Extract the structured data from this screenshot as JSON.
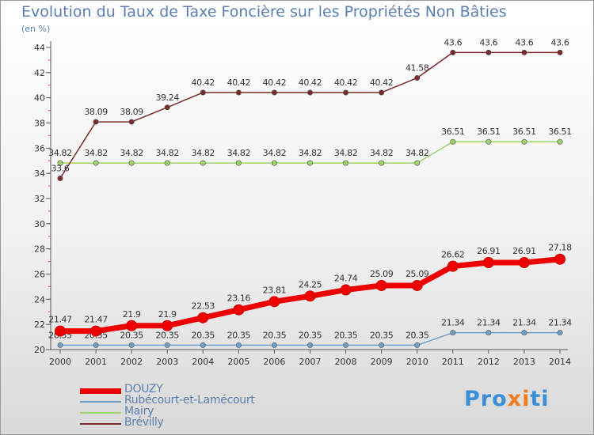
{
  "title": "Evolution du Taux de Taxe Foncière sur les Propriétés Non Bâties",
  "unit_label": "(en %)",
  "brand": {
    "parts": [
      "Pro",
      "x",
      "i",
      "ti"
    ],
    "colors": [
      "#3a8fd6",
      "#ee7b1e",
      "#ee7b1e",
      "#3a8fd6"
    ]
  },
  "chart_data": {
    "type": "line",
    "x": [
      "2000",
      "2001",
      "2002",
      "2003",
      "2004",
      "2005",
      "2006",
      "2007",
      "2008",
      "2009",
      "2010",
      "2011",
      "2012",
      "2013",
      "2014"
    ],
    "ylim": [
      20,
      44
    ],
    "yticks": [
      20,
      22,
      24,
      26,
      28,
      30,
      32,
      34,
      36,
      38,
      40,
      42,
      44
    ],
    "grid": false,
    "legend_position": "bottom-left",
    "series": [
      {
        "name": "DOUZY",
        "color": "#ee0000",
        "emphasis": true,
        "values": [
          21.47,
          21.47,
          21.9,
          21.9,
          22.53,
          23.16,
          23.81,
          24.25,
          24.74,
          25.09,
          25.09,
          26.62,
          26.91,
          26.91,
          27.18
        ],
        "labels": [
          "21.47",
          "21.47",
          "21.9",
          "21.9",
          "22.53",
          "23.16",
          "23.81",
          "24.25",
          "24.74",
          "25.09",
          "25.09",
          "26.62",
          "26.91",
          "26.91",
          "27.18"
        ]
      },
      {
        "name": "Rubécourt-et-Lamécourt",
        "color": "#6f9fc8",
        "values": [
          20.35,
          20.35,
          20.35,
          20.35,
          20.35,
          20.35,
          20.35,
          20.35,
          20.35,
          20.35,
          20.35,
          21.34,
          21.34,
          21.34,
          21.34
        ],
        "labels": [
          "20.35",
          "20.35",
          "20.35",
          "20.35",
          "20.35",
          "20.35",
          "20.35",
          "20.35",
          "20.35",
          "20.35",
          "20.35",
          "21.34",
          "21.34",
          "21.34",
          "21.34"
        ]
      },
      {
        "name": "Mairy",
        "color": "#9ed36a",
        "values": [
          34.82,
          34.82,
          34.82,
          34.82,
          34.82,
          34.82,
          34.82,
          34.82,
          34.82,
          34.82,
          34.82,
          36.51,
          36.51,
          36.51,
          36.51
        ],
        "labels": [
          "34.82",
          "34.82",
          "34.82",
          "34.82",
          "34.82",
          "34.82",
          "34.82",
          "34.82",
          "34.82",
          "34.82",
          "34.82",
          "36.51",
          "36.51",
          "36.51",
          "36.51"
        ]
      },
      {
        "name": "Brévilly",
        "color": "#7a2b2b",
        "values": [
          33.6,
          38.09,
          38.09,
          39.24,
          40.42,
          40.42,
          40.42,
          40.42,
          40.42,
          40.42,
          41.58,
          43.6,
          43.6,
          43.6,
          43.6
        ],
        "labels": [
          "33.6",
          "38.09",
          "38.09",
          "39.24",
          "40.42",
          "40.42",
          "40.42",
          "40.42",
          "40.42",
          "40.42",
          "41.58",
          "43.6",
          "43.6",
          "43.6",
          "43.6"
        ]
      }
    ]
  }
}
